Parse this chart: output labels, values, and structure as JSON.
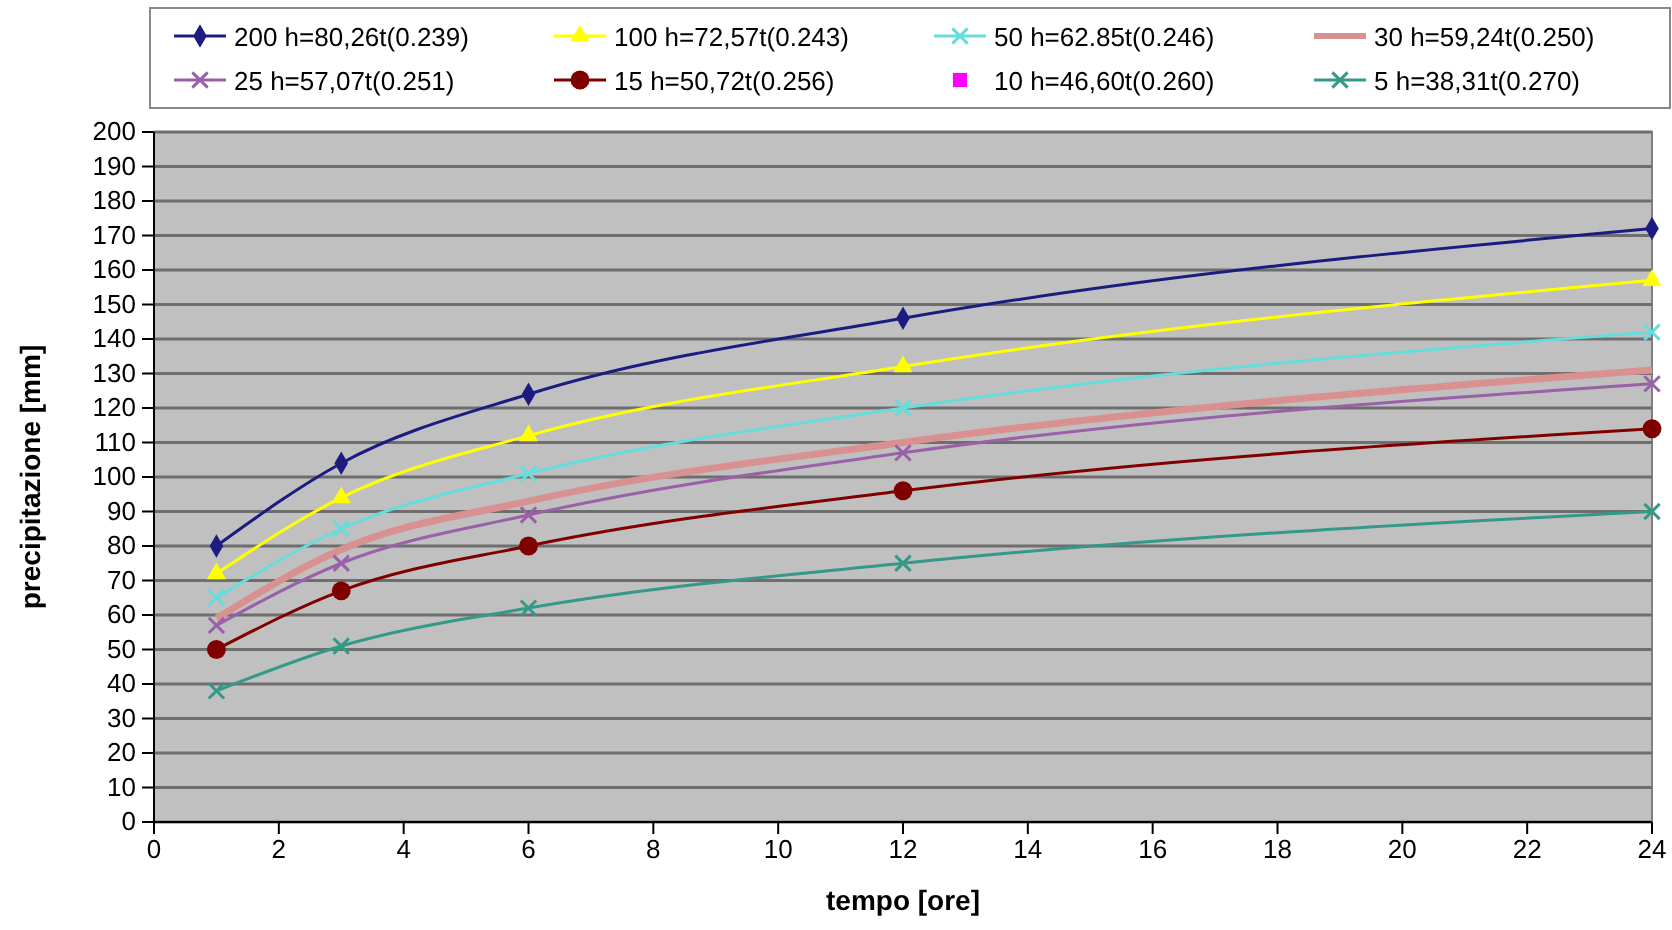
{
  "chart_data": {
    "type": "line",
    "xlabel": "tempo [ore]",
    "ylabel": "precipitazione [mm]",
    "x": [
      1,
      3,
      6,
      12,
      24
    ],
    "xlim": [
      0,
      24
    ],
    "xticks": [
      0,
      2,
      4,
      6,
      8,
      10,
      12,
      14,
      16,
      18,
      20,
      22,
      24
    ],
    "ylim": [
      0,
      200
    ],
    "yticks": [
      0,
      10,
      20,
      30,
      40,
      50,
      60,
      70,
      80,
      90,
      100,
      110,
      120,
      130,
      140,
      150,
      160,
      170,
      180,
      190,
      200
    ],
    "grid": "y",
    "legend": "top",
    "series": [
      {
        "name": "200 h=80,26t(0.239)",
        "color": "#1c1c80",
        "marker": "diamond",
        "values": [
          80,
          104,
          124,
          146,
          172
        ]
      },
      {
        "name": "100 h=72,57t(0.243)",
        "color": "#ffff00",
        "marker": "triangle",
        "values": [
          72,
          94,
          112,
          132,
          157
        ]
      },
      {
        "name": "50 h=62.85t(0.246)",
        "color": "#66dddd",
        "marker": "cross",
        "values": [
          65,
          85,
          101,
          120,
          142
        ]
      },
      {
        "name": "30 h=59,24t(0.250)",
        "color": "#d99090",
        "marker": "none",
        "values": [
          59,
          79,
          93,
          110,
          131
        ]
      },
      {
        "name": "25 h=57,07t(0.251)",
        "color": "#9a60a8",
        "marker": "cross",
        "values": [
          57,
          75,
          89,
          107,
          127
        ]
      },
      {
        "name": "15 h=50,72t(0.256)",
        "color": "#800000",
        "marker": "circle",
        "values": [
          50,
          67,
          80,
          96,
          114
        ]
      },
      {
        "name": "10 h=46,60t(0.260)",
        "color": "#ff00ff",
        "marker": "square",
        "values": [
          null,
          null,
          null,
          null,
          null
        ]
      },
      {
        "name": "5 h=38,31t(0.270)",
        "color": "#339988",
        "marker": "cross",
        "values": [
          38,
          51,
          62,
          75,
          90
        ]
      }
    ]
  }
}
